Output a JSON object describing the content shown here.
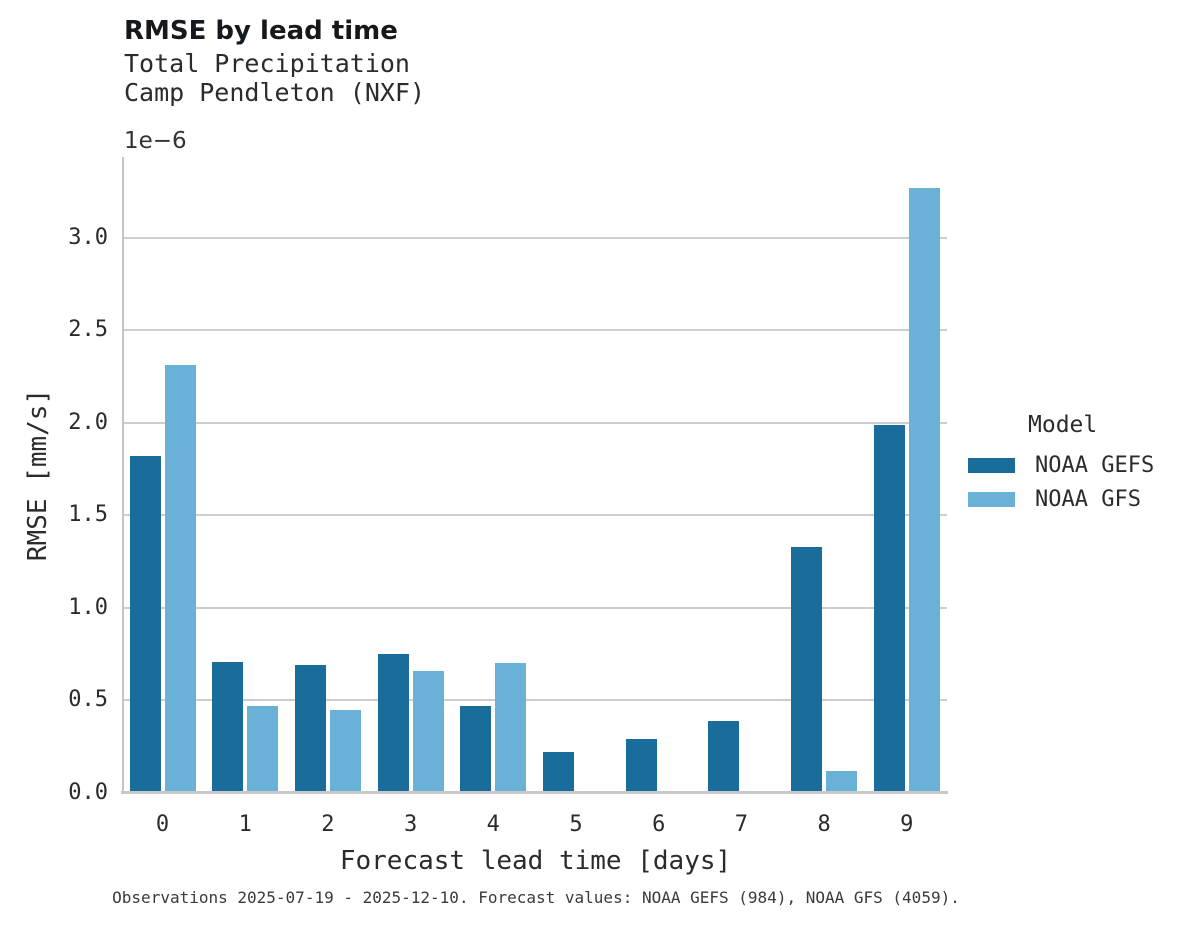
{
  "header": {
    "title": "RMSE by lead time",
    "subtitle_line1": "Total Precipitation",
    "subtitle_line2": "Camp Pendleton (NXF)"
  },
  "axes": {
    "y_offset_label": "1e−6",
    "ylabel": "RMSE [mm/s]",
    "xlabel": "Forecast lead time [days]"
  },
  "legend": {
    "title": "Model",
    "entries": [
      {
        "label": "NOAA GEFS",
        "color": "#1a6c9a"
      },
      {
        "label": "NOAA GFS",
        "color": "#6ab1d7"
      }
    ]
  },
  "caption": "Observations 2025-07-19 - 2025-12-10. Forecast values: NOAA GEFS (984), NOAA GFS (4059).",
  "chart_data": {
    "type": "bar",
    "title": "RMSE by lead time",
    "subtitle": [
      "Total Precipitation",
      "Camp Pendleton (NXF)"
    ],
    "categories": [
      "0",
      "1",
      "2",
      "3",
      "4",
      "5",
      "6",
      "7",
      "8",
      "9"
    ],
    "series": [
      {
        "name": "NOAA GEFS",
        "color": "#1a6c9a",
        "values": [
          1.82,
          0.71,
          0.69,
          0.75,
          0.47,
          0.22,
          0.29,
          0.39,
          1.33,
          1.99
        ]
      },
      {
        "name": "NOAA GFS",
        "color": "#6ab1d7",
        "values": [
          2.31,
          0.47,
          0.45,
          0.66,
          0.7,
          null,
          null,
          null,
          0.12,
          3.27
        ]
      }
    ],
    "value_scale": "1e-6",
    "xlabel": "Forecast lead time [days]",
    "ylabel": "RMSE [mm/s]",
    "ylim": [
      0,
      3.43
    ],
    "yticks": [
      0.0,
      0.5,
      1.0,
      1.5,
      2.0,
      2.5,
      3.0
    ],
    "grid": "horizontal",
    "legend_title": "Model",
    "legend_position": "right"
  }
}
